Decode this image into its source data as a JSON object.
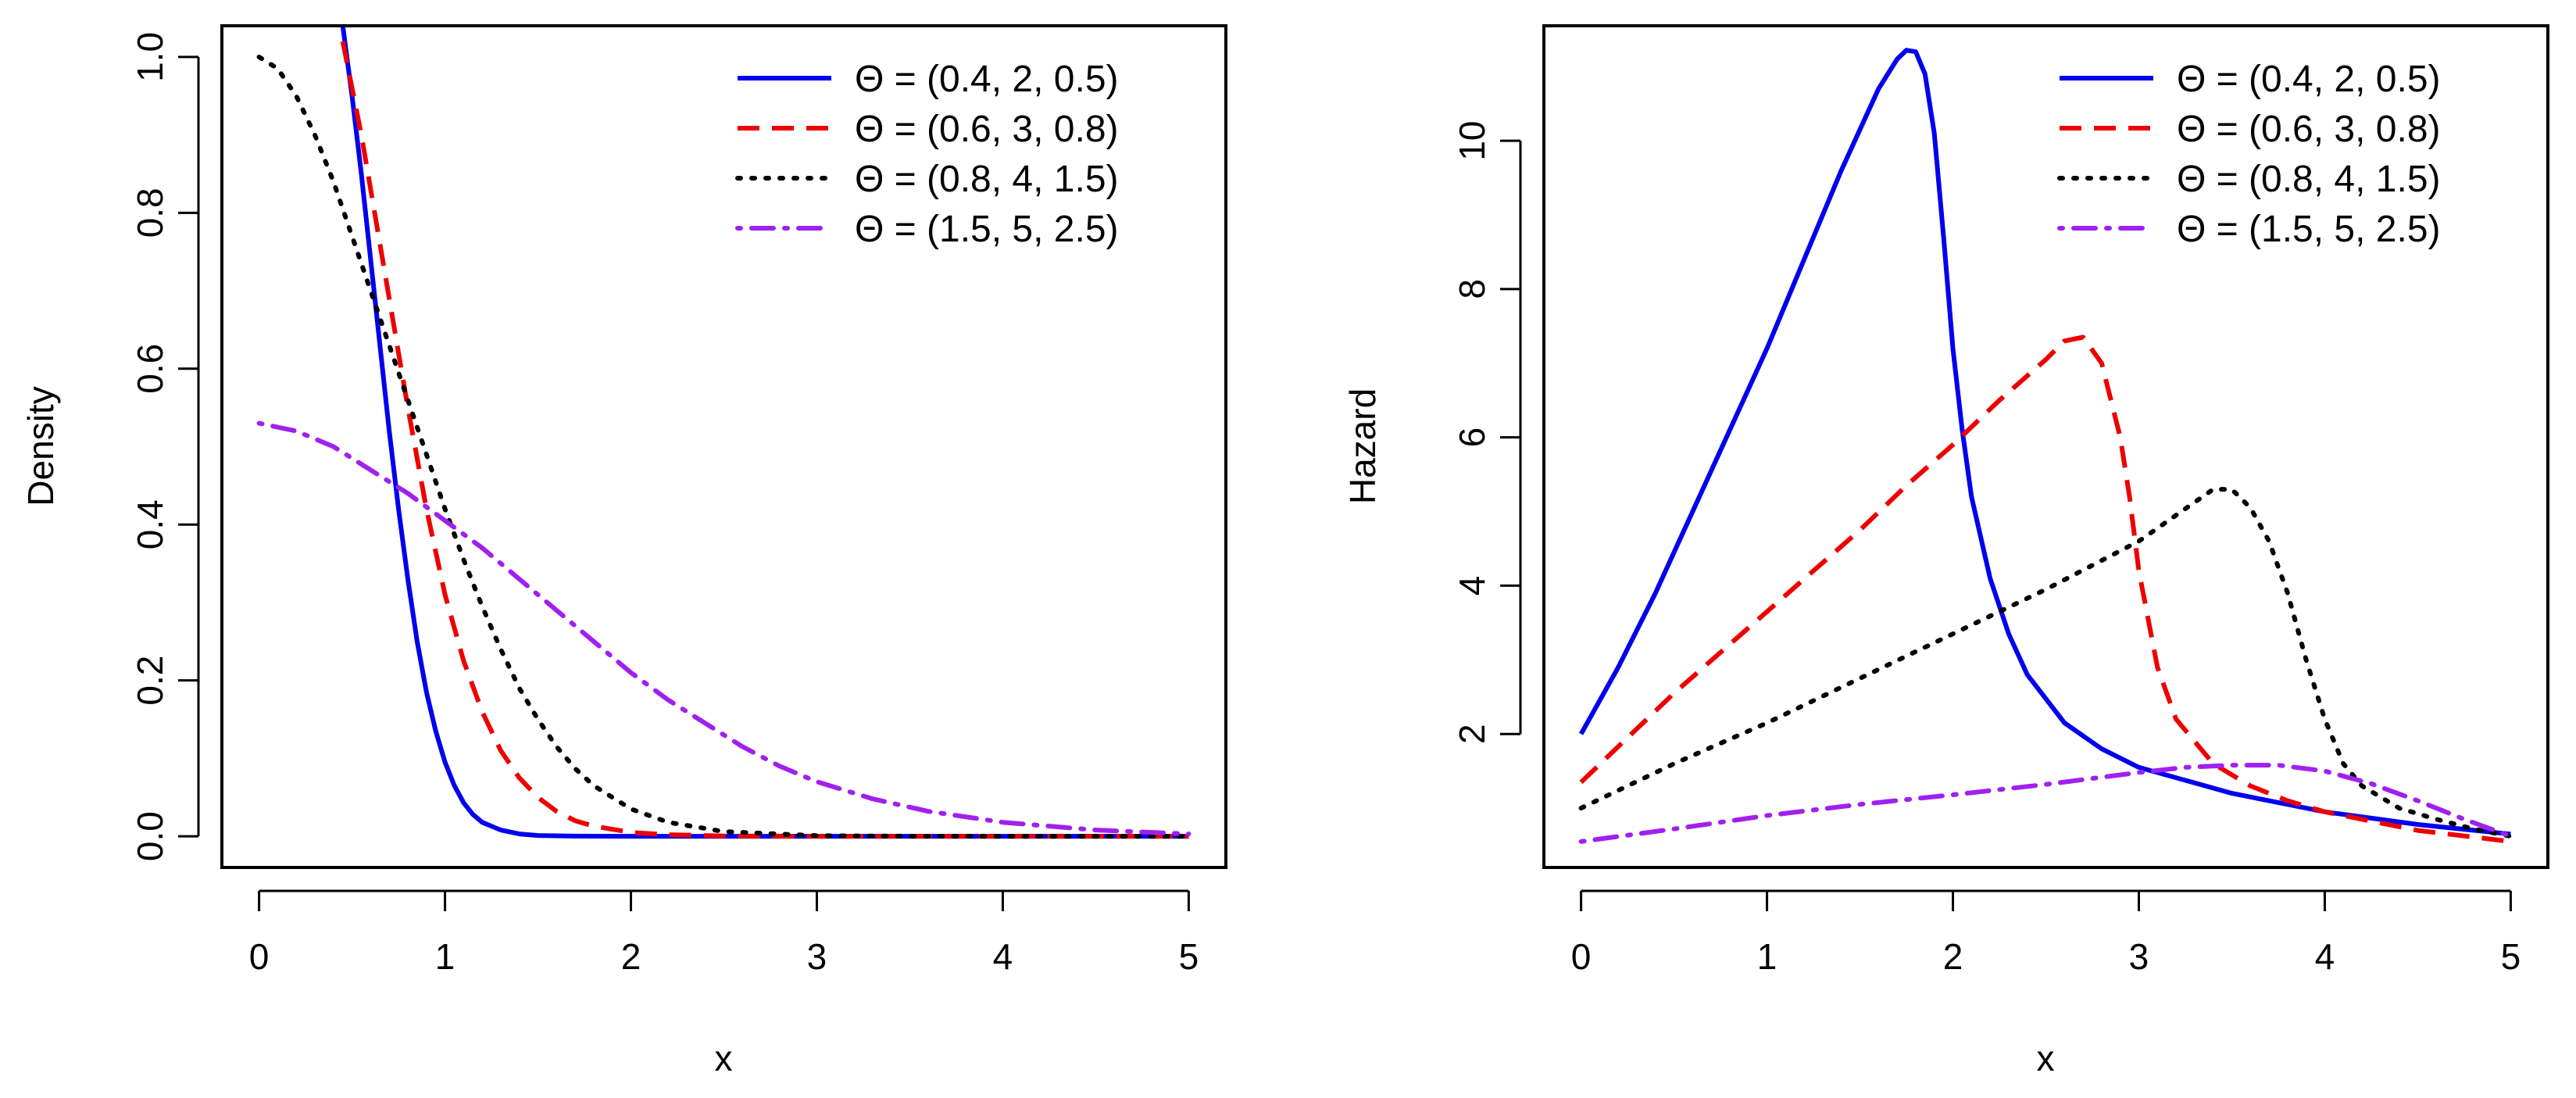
{
  "colors": {
    "s1": "#0000EE",
    "s2": "#EE0000",
    "s3": "#000000",
    "s4": "#A020F0"
  },
  "chart_data": [
    {
      "type": "line",
      "title": "",
      "xlabel": "x",
      "ylabel": "Density",
      "xlim": [
        -0.2,
        5.2
      ],
      "ylim": [
        -0.04,
        1.04
      ],
      "xticks": [
        "0",
        "1",
        "2",
        "3",
        "4",
        "5"
      ],
      "yticks": [
        "0.0",
        "0.2",
        "0.4",
        "0.6",
        "0.8",
        "1.0"
      ],
      "legend_position": "top-right",
      "series": [
        {
          "name": "Θ = (0.4, 2, 0.5)",
          "legend_label": "Θ = (0.4, 2, 0.5)",
          "style": "solid",
          "x": [
            0.45,
            0.5,
            0.55,
            0.6,
            0.65,
            0.7,
            0.75,
            0.8,
            0.85,
            0.9,
            0.95,
            1.0,
            1.05,
            1.1,
            1.15,
            1.2,
            1.3,
            1.4,
            1.5,
            1.7,
            2.0,
            2.5,
            3.0,
            4.0,
            5.0
          ],
          "y": [
            1.04,
            0.95,
            0.85,
            0.74,
            0.63,
            0.52,
            0.42,
            0.33,
            0.25,
            0.185,
            0.135,
            0.095,
            0.065,
            0.043,
            0.028,
            0.018,
            0.008,
            0.003,
            0.001,
            0.0002,
            0.0,
            0.0,
            0.0,
            0.0,
            0.0
          ]
        },
        {
          "name": "Θ = (0.6, 3, 0.8)",
          "legend_label": "Θ = (0.6, 3, 0.8)",
          "style": "dashed",
          "x": [
            0.45,
            0.5,
            0.55,
            0.6,
            0.7,
            0.8,
            0.9,
            1.0,
            1.1,
            1.2,
            1.3,
            1.4,
            1.5,
            1.6,
            1.7,
            1.8,
            2.0,
            2.2,
            2.5,
            3.0,
            4.0,
            5.0
          ],
          "y": [
            1.02,
            0.96,
            0.9,
            0.83,
            0.69,
            0.55,
            0.42,
            0.31,
            0.225,
            0.16,
            0.11,
            0.075,
            0.05,
            0.032,
            0.02,
            0.013,
            0.005,
            0.002,
            0.0004,
            0.0,
            0.0,
            0.0
          ]
        },
        {
          "name": "Θ = (0.8, 4, 1.5)",
          "legend_label": "Θ = (0.8, 4, 1.5)",
          "style": "dotted",
          "x": [
            0.0,
            0.1,
            0.2,
            0.3,
            0.4,
            0.5,
            0.6,
            0.7,
            0.8,
            0.9,
            1.0,
            1.1,
            1.2,
            1.3,
            1.4,
            1.5,
            1.6,
            1.7,
            1.8,
            2.0,
            2.2,
            2.5,
            3.0,
            3.5,
            4.0,
            5.0
          ],
          "y": [
            1.0,
            0.985,
            0.95,
            0.9,
            0.84,
            0.77,
            0.7,
            0.63,
            0.56,
            0.49,
            0.42,
            0.355,
            0.295,
            0.24,
            0.19,
            0.15,
            0.115,
            0.087,
            0.065,
            0.035,
            0.018,
            0.006,
            0.0008,
            0.0001,
            0.0,
            0.0
          ]
        },
        {
          "name": "Θ = (1.5, 5, 2.5)",
          "legend_label": "Θ = (1.5, 5, 2.5)",
          "style": "dotdash",
          "x": [
            0.0,
            0.2,
            0.4,
            0.6,
            0.8,
            1.0,
            1.2,
            1.4,
            1.6,
            1.8,
            2.0,
            2.2,
            2.4,
            2.6,
            2.8,
            3.0,
            3.3,
            3.6,
            4.0,
            4.5,
            5.0
          ],
          "y": [
            0.53,
            0.52,
            0.5,
            0.47,
            0.44,
            0.405,
            0.37,
            0.33,
            0.29,
            0.25,
            0.21,
            0.175,
            0.145,
            0.115,
            0.09,
            0.07,
            0.048,
            0.032,
            0.018,
            0.008,
            0.003
          ]
        }
      ]
    },
    {
      "type": "line",
      "title": "",
      "xlabel": "x",
      "ylabel": "Hazard",
      "xlim": [
        -0.2,
        5.2
      ],
      "ylim": [
        0.2,
        11.55
      ],
      "xticks": [
        "0",
        "1",
        "2",
        "3",
        "4",
        "5"
      ],
      "yticks": [
        "2",
        "4",
        "6",
        "8",
        "10"
      ],
      "legend_position": "top-right",
      "series": [
        {
          "name": "Θ = (0.4, 2, 0.5)",
          "legend_label": "Θ = (0.4, 2, 0.5)",
          "style": "solid",
          "x": [
            0.0,
            0.2,
            0.4,
            0.6,
            0.8,
            1.0,
            1.2,
            1.4,
            1.6,
            1.7,
            1.75,
            1.8,
            1.85,
            1.9,
            1.95,
            2.0,
            2.05,
            2.1,
            2.2,
            2.3,
            2.4,
            2.6,
            2.8,
            3.0,
            3.5,
            4.0,
            4.5,
            5.0
          ],
          "y": [
            2.0,
            2.9,
            3.9,
            5.0,
            6.1,
            7.2,
            8.4,
            9.6,
            10.7,
            11.1,
            11.22,
            11.2,
            10.9,
            10.1,
            8.7,
            7.2,
            6.1,
            5.2,
            4.1,
            3.35,
            2.8,
            2.15,
            1.8,
            1.55,
            1.2,
            0.95,
            0.78,
            0.65
          ]
        },
        {
          "name": "Θ = (0.6, 3, 0.8)",
          "legend_label": "Θ = (0.6, 3, 0.8)",
          "style": "dashed",
          "x": [
            0.0,
            0.25,
            0.5,
            0.75,
            1.0,
            1.25,
            1.5,
            1.75,
            2.0,
            2.25,
            2.5,
            2.6,
            2.7,
            2.8,
            2.9,
            2.95,
            3.0,
            3.1,
            3.2,
            3.4,
            3.6,
            3.8,
            4.0,
            4.5,
            5.0
          ],
          "y": [
            1.35,
            1.95,
            2.55,
            3.1,
            3.65,
            4.2,
            4.75,
            5.35,
            5.9,
            6.5,
            7.05,
            7.3,
            7.35,
            7.0,
            6.0,
            5.2,
            4.2,
            2.9,
            2.2,
            1.6,
            1.3,
            1.1,
            0.95,
            0.7,
            0.55
          ]
        },
        {
          "name": "Θ = (0.8, 4, 1.5)",
          "legend_label": "Θ = (0.8, 4, 1.5)",
          "style": "dotted",
          "x": [
            0.0,
            0.5,
            1.0,
            1.5,
            2.0,
            2.5,
            3.0,
            3.2,
            3.4,
            3.5,
            3.6,
            3.7,
            3.8,
            3.9,
            4.0,
            4.1,
            4.2,
            4.4,
            4.6,
            4.8,
            5.0
          ],
          "y": [
            1.0,
            1.6,
            2.15,
            2.75,
            3.35,
            3.95,
            4.6,
            4.95,
            5.3,
            5.3,
            5.05,
            4.6,
            3.9,
            3.0,
            2.2,
            1.6,
            1.3,
            1.0,
            0.85,
            0.72,
            0.62
          ]
        },
        {
          "name": "Θ = (1.5, 5, 2.5)",
          "legend_label": "Θ = (1.5, 5, 2.5)",
          "style": "dotdash",
          "x": [
            0.0,
            0.5,
            1.0,
            1.5,
            2.0,
            2.5,
            3.0,
            3.25,
            3.5,
            3.75,
            4.0,
            4.25,
            4.5,
            4.75,
            5.0
          ],
          "y": [
            0.55,
            0.72,
            0.9,
            1.05,
            1.18,
            1.32,
            1.48,
            1.55,
            1.58,
            1.58,
            1.5,
            1.33,
            1.1,
            0.85,
            0.62
          ]
        }
      ]
    }
  ]
}
